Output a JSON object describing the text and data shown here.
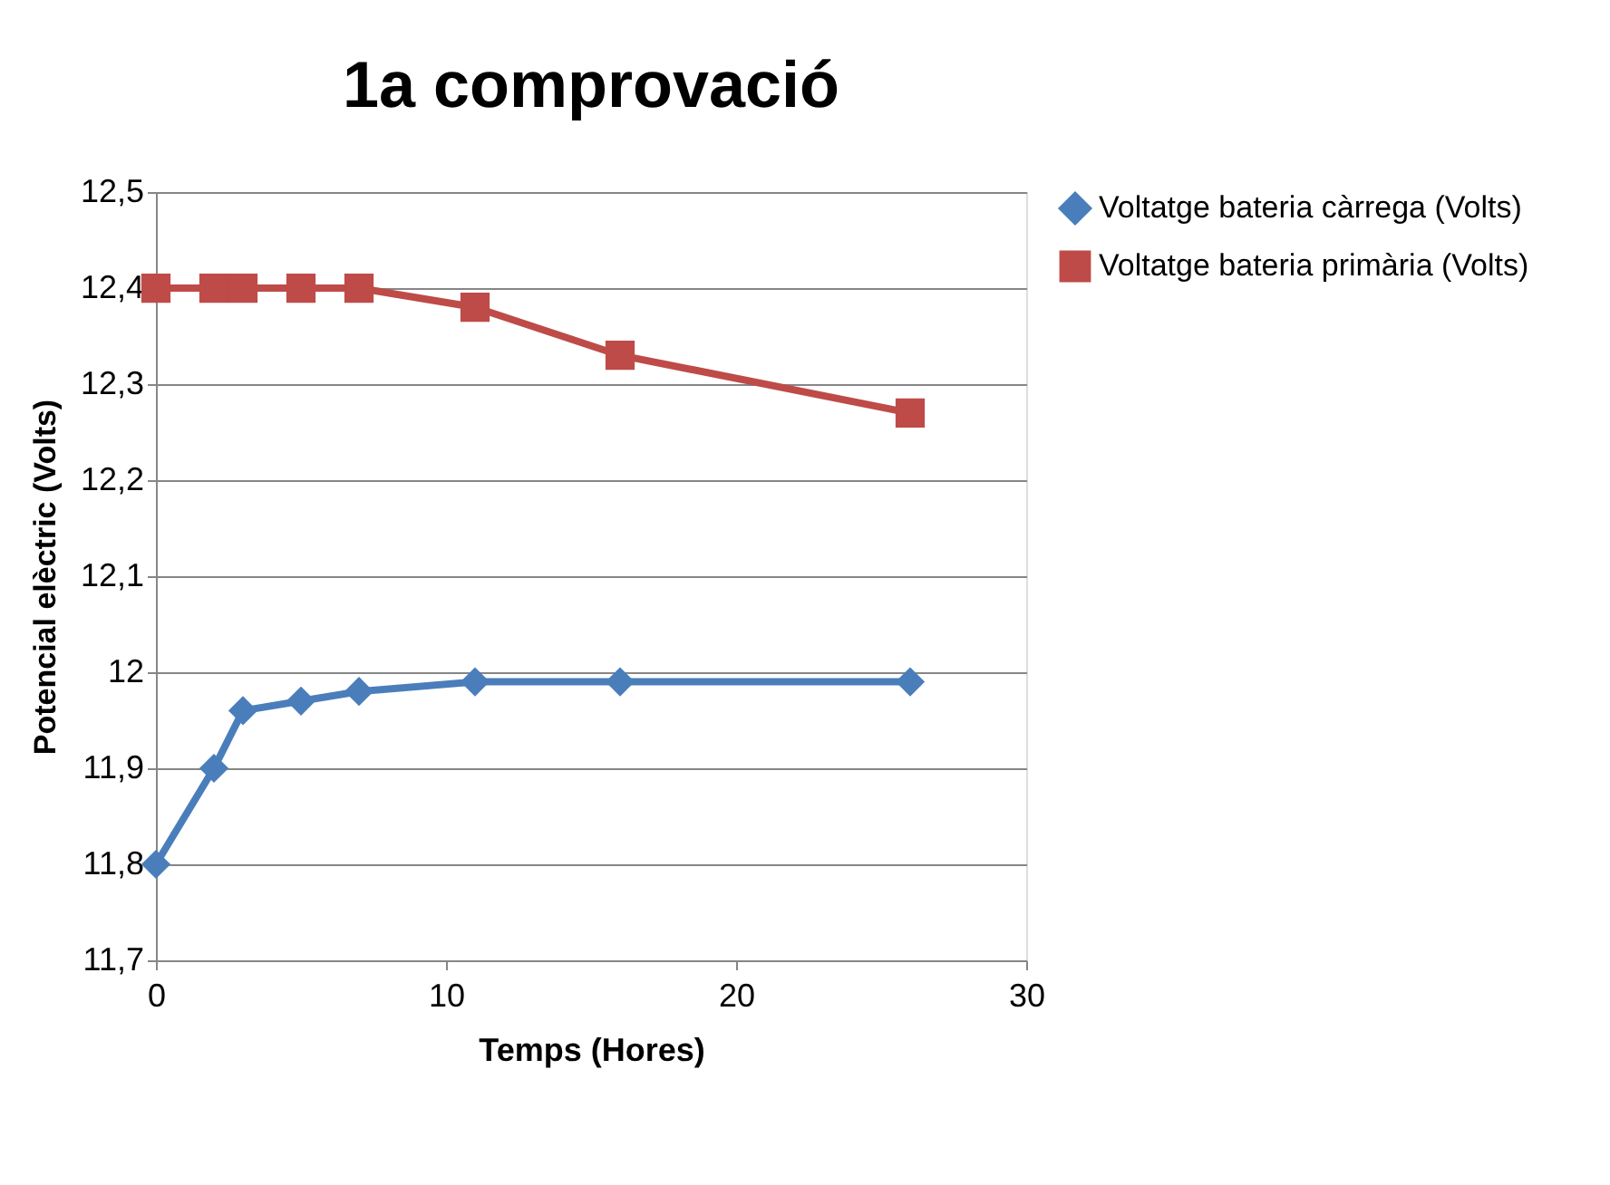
{
  "chart_data": {
    "type": "line",
    "title": "1a comprovació",
    "xlabel": "Temps (Hores)",
    "ylabel": "Potencial elèctric (Volts)",
    "series": [
      {
        "name": "Voltatge bateria càrrega (Volts)",
        "color": "#4a7ebb",
        "marker": "diamond",
        "x": [
          0,
          2,
          3,
          5,
          7,
          11,
          16,
          26
        ],
        "values": [
          11.8,
          11.9,
          11.96,
          11.97,
          11.98,
          11.99,
          11.99,
          11.99
        ]
      },
      {
        "name": "Voltatge bateria primària (Volts)",
        "color": "#be4b48",
        "marker": "square",
        "x": [
          0,
          2,
          3,
          5,
          7,
          11,
          16,
          26
        ],
        "values": [
          12.4,
          12.4,
          12.4,
          12.4,
          12.4,
          12.38,
          12.33,
          12.27
        ]
      }
    ],
    "xlim": [
      0,
      30
    ],
    "xticks": [
      0,
      10,
      20,
      30
    ],
    "ylim": [
      11.7,
      12.5
    ],
    "yticks": [
      {
        "value": 11.7,
        "label": "11,7"
      },
      {
        "value": 11.8,
        "label": "11,8"
      },
      {
        "value": 11.9,
        "label": "11,9"
      },
      12,
      {
        "value": 12.1,
        "label": "12,1"
      },
      {
        "value": 12.2,
        "label": "12,2"
      },
      {
        "value": 12.3,
        "label": "12,3"
      },
      {
        "value": 12.4,
        "label": "12,4"
      },
      {
        "value": 12.5,
        "label": "12,5"
      }
    ],
    "grid": "y",
    "legend": "right",
    "line_style": "solid"
  }
}
